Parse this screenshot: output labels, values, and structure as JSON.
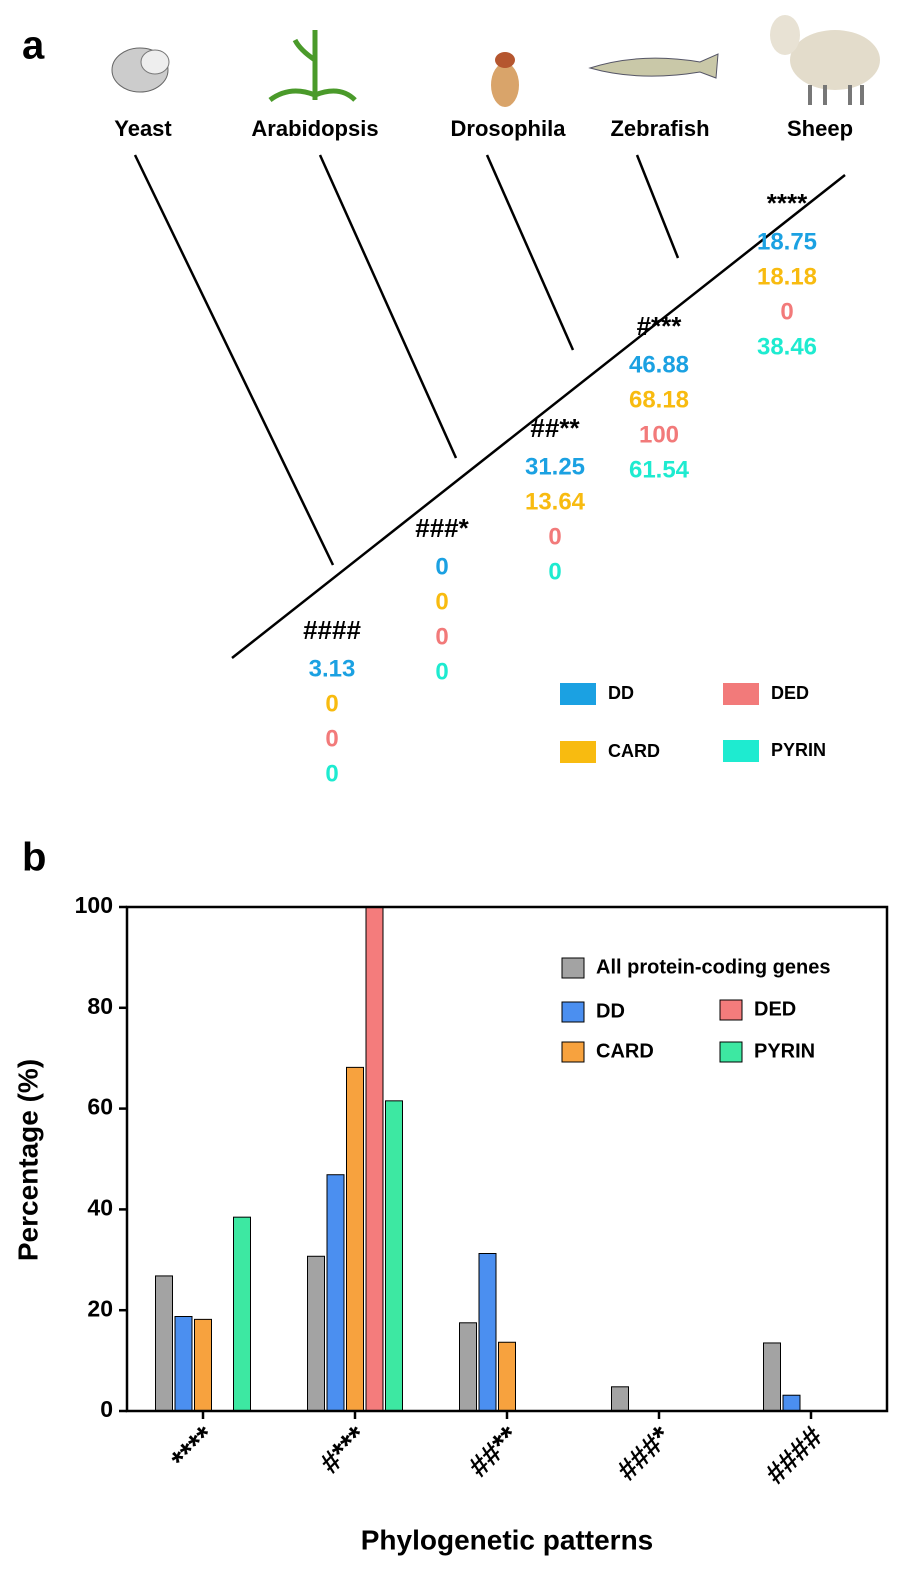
{
  "panel_a": {
    "label": "a",
    "species": [
      "Yeast",
      "Arabidopsis",
      "Drosophila",
      "Zebrafish",
      "Sheep"
    ],
    "legend": [
      {
        "name": "DD",
        "color": "#1ba1e2"
      },
      {
        "name": "CARD",
        "color": "#f8bb10"
      },
      {
        "name": "DED",
        "color": "#f27a7a"
      },
      {
        "name": "PYRIN",
        "color": "#1eebd0"
      }
    ],
    "nodes": [
      {
        "pattern": "####",
        "values": [
          3.13,
          0,
          0,
          0
        ]
      },
      {
        "pattern": "###*",
        "values": [
          0,
          0,
          0,
          0
        ]
      },
      {
        "pattern": "##**",
        "values": [
          31.25,
          13.64,
          0,
          0
        ]
      },
      {
        "pattern": "#***",
        "values": [
          46.88,
          68.18,
          100,
          61.54
        ]
      },
      {
        "pattern": "****",
        "values": [
          18.75,
          18.18,
          0,
          38.46
        ]
      }
    ]
  },
  "chart_data": {
    "type": "bar",
    "panel_label": "b",
    "xlabel": "Phylogenetic patterns",
    "ylabel": "Percentage (%)",
    "categories": [
      "****",
      "#***",
      "##**",
      "###*",
      "####"
    ],
    "series": [
      {
        "name": "All protein-coding genes",
        "color": "#a3a3a3",
        "values": [
          26.8,
          30.7,
          17.5,
          4.8,
          13.5
        ]
      },
      {
        "name": "DD",
        "color": "#4b8ff0",
        "values": [
          18.75,
          46.88,
          31.25,
          0,
          3.13
        ]
      },
      {
        "name": "CARD",
        "color": "#f7a23e",
        "values": [
          18.18,
          68.18,
          13.64,
          0,
          0
        ]
      },
      {
        "name": "DED",
        "color": "#f47c7c",
        "values": [
          0,
          100,
          0,
          0,
          0
        ]
      },
      {
        "name": "PYRIN",
        "color": "#3de8a2",
        "values": [
          38.46,
          61.54,
          0,
          0,
          0
        ]
      }
    ],
    "ylim": [
      0,
      100
    ],
    "yticks": [
      0,
      20,
      40,
      60,
      80,
      100
    ]
  }
}
